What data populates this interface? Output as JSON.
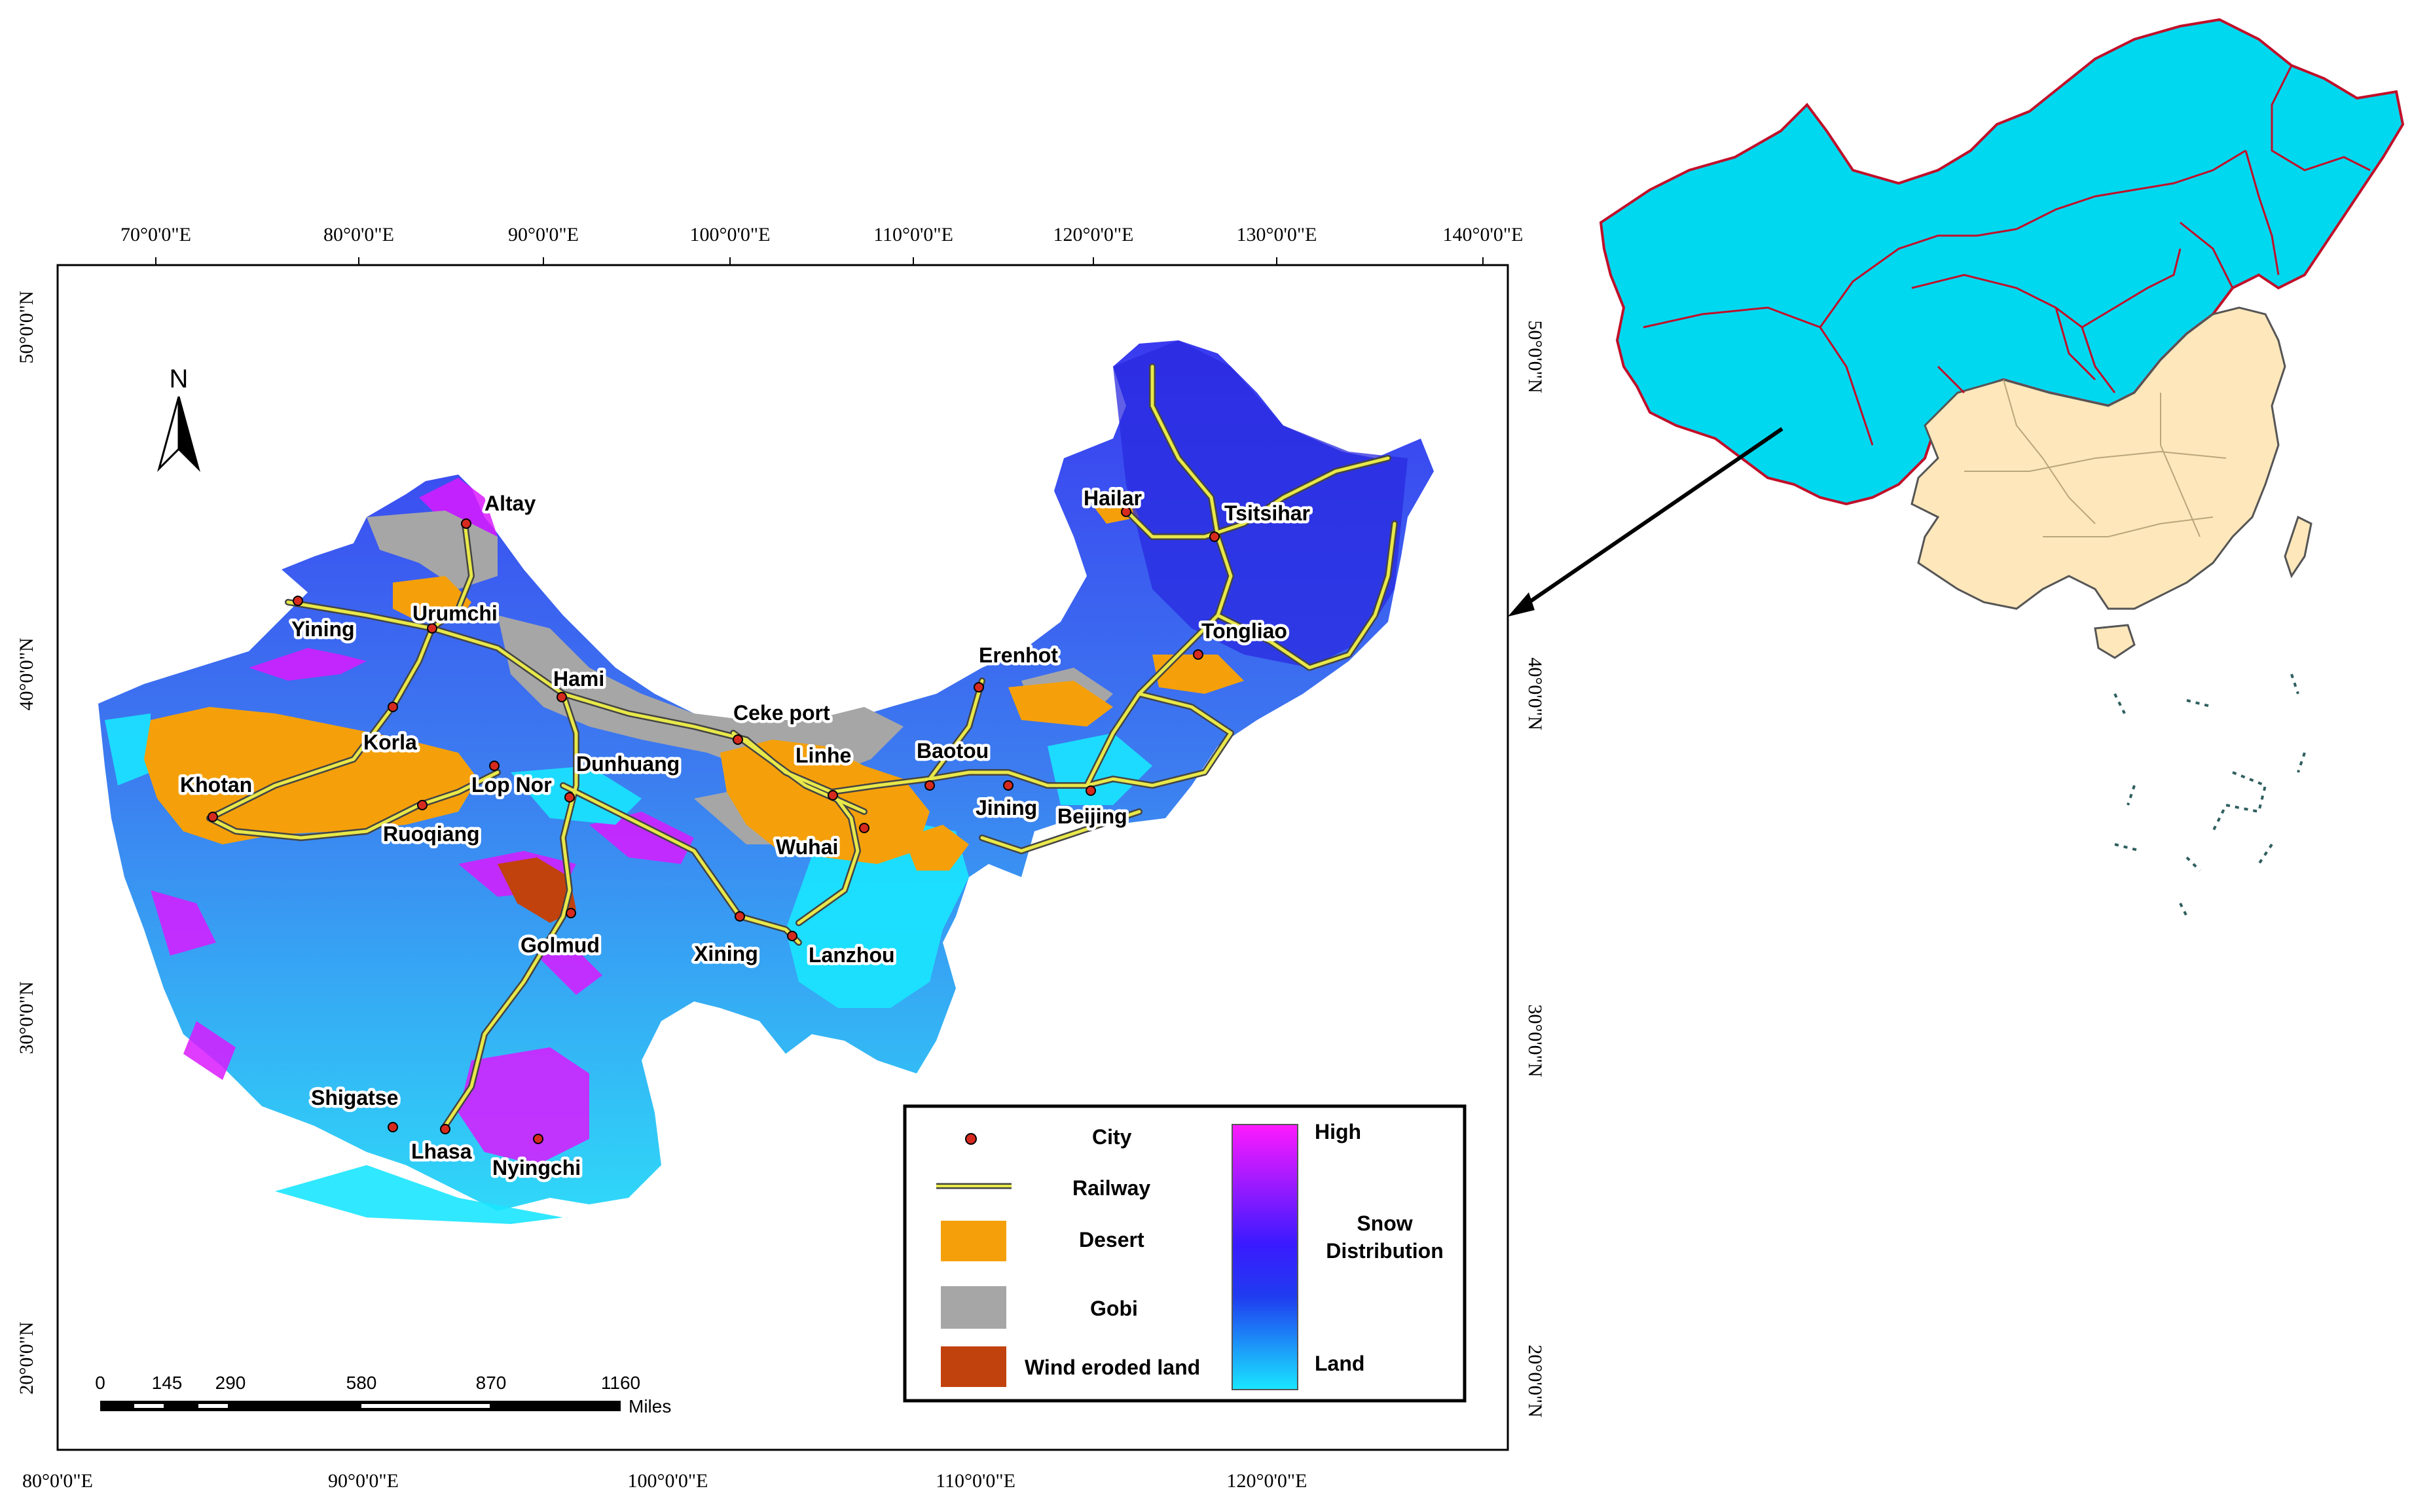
{
  "top_axis_labels": [
    "70°0'0\"E",
    "80°0'0\"E",
    "90°0'0\"E",
    "100°0'0\"E",
    "110°0'0\"E",
    "120°0'0\"E",
    "130°0'0\"E",
    "140°0'0\"E"
  ],
  "bottom_axis_labels": [
    "80°0'0\"E",
    "90°0'0\"E",
    "100°0'0\"E",
    "110°0'0\"E",
    "120°0'0\"E"
  ],
  "left_axis_labels": [
    "50°0'0\"N",
    "40°0'0\"N",
    "30°0'0\"N",
    "20°0'0\"N"
  ],
  "right_axis_labels": [
    "50°0'0\"N",
    "40°0'0\"N",
    "30°0'0\"N",
    "20°0'0\"N"
  ],
  "north_arrow": {
    "label": "N",
    "icon": "north-arrow-icon"
  },
  "cities": [
    "Altay",
    "Urumchi",
    "Yining",
    "Hami",
    "Korla",
    "Khotan",
    "Lop Nor",
    "Ruoqiang",
    "Dunhuang",
    "Ceke port",
    "Linhe",
    "Baotou",
    "Erenhot",
    "Hailar",
    "Tsitsihar",
    "Tongliao",
    "Jining",
    "Beijing",
    "Wuhai",
    "Lanzhou",
    "Xining",
    "Golmud",
    "Shigatse",
    "Lhasa",
    "Nyingchi"
  ],
  "legend": {
    "city": "City",
    "railway": "Railway",
    "desert": "Desert",
    "gobi": "Gobi",
    "wind": "Wind eroded land",
    "high": "High",
    "snow1": "Snow",
    "snow2": "Distribution",
    "land": "Land"
  },
  "colors": {
    "desert": "#f5a00a",
    "gobi": "#a6a6a6",
    "wind": "#c1420c",
    "railway": "#e8e84a",
    "city": "#d62a1f",
    "snow_high": "#ff1aff",
    "snow_mid": "#2424e0",
    "land": "#19e0ff",
    "china_highlight": "#00d8f0",
    "china_rest": "#fde7bb",
    "province_border": "#c0102a"
  },
  "scale_bar": {
    "labels": [
      "0",
      "145",
      "290",
      "580",
      "870",
      "1160"
    ],
    "unit": "Miles"
  }
}
